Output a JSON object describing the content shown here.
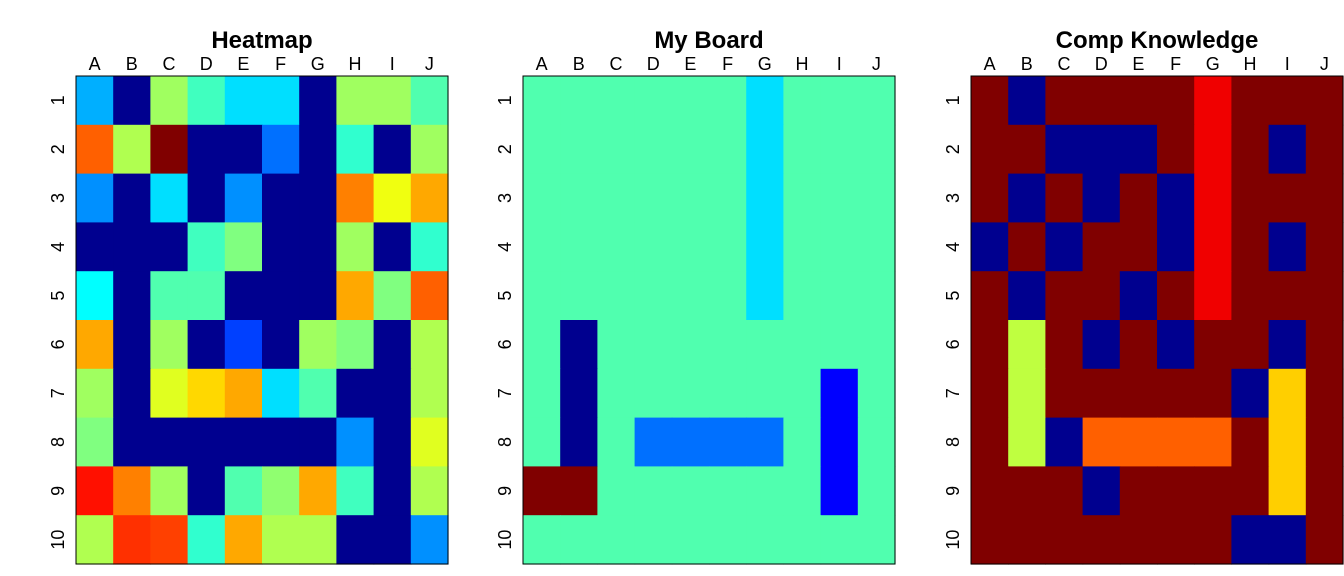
{
  "palette": [
    "#00008F",
    "#0000FF",
    "#0070FF",
    "#00DFFF",
    "#50FFAF",
    "#BFFF40",
    "#FFCF00",
    "#FF6000",
    "#F00000",
    "#800000",
    "#00AFFF",
    "#1FFFDF",
    "#30FFCF",
    "#00FFFF",
    "#90FF70",
    "#A0FF60",
    "#B0FF50",
    "#FF8000",
    "#FFA800",
    "#F0FF10",
    "#FF3000",
    "#0040FF",
    "#0090FF",
    "#FF1000",
    "#FF4000",
    "#FFD800",
    "#E0FF20",
    "#80FF80",
    "#40FFBF",
    "#FF9000"
  ],
  "chart_data": [
    {
      "type": "heatmap",
      "title": "Heatmap",
      "columns": [
        "A",
        "B",
        "C",
        "D",
        "E",
        "F",
        "G",
        "H",
        "I",
        "J"
      ],
      "rows": [
        "1",
        "2",
        "3",
        "4",
        "5",
        "6",
        "7",
        "8",
        "9",
        "10"
      ],
      "values": [
        [
          10,
          0,
          15,
          28,
          3,
          3,
          0,
          15,
          15,
          4
        ],
        [
          7,
          16,
          9,
          0,
          0,
          2,
          0,
          12,
          0,
          15
        ],
        [
          22,
          0,
          3,
          0,
          22,
          0,
          0,
          17,
          19,
          18
        ],
        [
          0,
          0,
          0,
          28,
          27,
          0,
          0,
          15,
          0,
          12
        ],
        [
          13,
          0,
          4,
          4,
          0,
          0,
          0,
          18,
          27,
          7
        ],
        [
          18,
          0,
          15,
          0,
          21,
          0,
          15,
          27,
          0,
          16
        ],
        [
          15,
          0,
          26,
          25,
          18,
          3,
          4,
          0,
          0,
          16
        ],
        [
          27,
          0,
          0,
          0,
          0,
          0,
          0,
          22,
          0,
          26
        ],
        [
          23,
          17,
          15,
          0,
          4,
          14,
          18,
          28,
          0,
          16
        ],
        [
          16,
          20,
          24,
          12,
          18,
          16,
          16,
          0,
          0,
          22
        ]
      ]
    },
    {
      "type": "heatmap",
      "title": "My Board",
      "columns": [
        "A",
        "B",
        "C",
        "D",
        "E",
        "F",
        "G",
        "H",
        "I",
        "J"
      ],
      "rows": [
        "1",
        "2",
        "3",
        "4",
        "5",
        "6",
        "7",
        "8",
        "9",
        "10"
      ],
      "values": [
        [
          4,
          4,
          4,
          4,
          4,
          4,
          3,
          4,
          4,
          4
        ],
        [
          4,
          4,
          4,
          4,
          4,
          4,
          3,
          4,
          4,
          4
        ],
        [
          4,
          4,
          4,
          4,
          4,
          4,
          3,
          4,
          4,
          4
        ],
        [
          4,
          4,
          4,
          4,
          4,
          4,
          3,
          4,
          4,
          4
        ],
        [
          4,
          4,
          4,
          4,
          4,
          4,
          3,
          4,
          4,
          4
        ],
        [
          4,
          0,
          4,
          4,
          4,
          4,
          4,
          4,
          4,
          4
        ],
        [
          4,
          0,
          4,
          4,
          4,
          4,
          4,
          4,
          1,
          4
        ],
        [
          4,
          0,
          4,
          2,
          2,
          2,
          2,
          4,
          1,
          4
        ],
        [
          9,
          9,
          4,
          4,
          4,
          4,
          4,
          4,
          1,
          4
        ],
        [
          4,
          4,
          4,
          4,
          4,
          4,
          4,
          4,
          4,
          4
        ]
      ]
    },
    {
      "type": "heatmap",
      "title": "Comp Knowledge",
      "columns": [
        "A",
        "B",
        "C",
        "D",
        "E",
        "F",
        "G",
        "H",
        "I",
        "J"
      ],
      "rows": [
        "1",
        "2",
        "3",
        "4",
        "5",
        "6",
        "7",
        "8",
        "9",
        "10"
      ],
      "values": [
        [
          9,
          0,
          9,
          9,
          9,
          9,
          8,
          9,
          9,
          9
        ],
        [
          9,
          9,
          0,
          0,
          0,
          9,
          8,
          9,
          0,
          9
        ],
        [
          9,
          0,
          9,
          0,
          9,
          0,
          8,
          9,
          9,
          9
        ],
        [
          0,
          9,
          0,
          9,
          9,
          0,
          8,
          9,
          0,
          9
        ],
        [
          9,
          0,
          9,
          9,
          0,
          9,
          8,
          9,
          9,
          9
        ],
        [
          9,
          5,
          9,
          0,
          9,
          0,
          9,
          9,
          0,
          9
        ],
        [
          9,
          5,
          9,
          9,
          9,
          9,
          9,
          0,
          6,
          9
        ],
        [
          9,
          5,
          0,
          7,
          7,
          7,
          7,
          9,
          6,
          9
        ],
        [
          9,
          9,
          9,
          0,
          9,
          9,
          9,
          9,
          6,
          9
        ],
        [
          9,
          9,
          9,
          9,
          9,
          9,
          9,
          0,
          0,
          9
        ]
      ]
    }
  ]
}
